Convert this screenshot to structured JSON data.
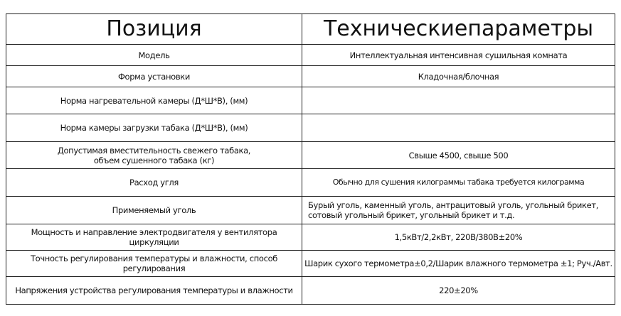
{
  "header": {
    "position": "Позиция",
    "parameters": "Техническиепараметры"
  },
  "rows": [
    {
      "label": "Модель",
      "value": "Интеллектуальная интенсивная сушильная комната"
    },
    {
      "label": "Форма установки",
      "value": "Кладочная/блочная"
    },
    {
      "label": "Норма нагревательной камеры (Д*Ш*В), (мм)",
      "value": ""
    },
    {
      "label": "Норма камеры загрузки табака (Д*Ш*В), (мм)",
      "value": ""
    },
    {
      "label": "Допустимая вместительность свежего табака,\nобъем сушенного табака (кг)",
      "value": "Свыше 4500,  свыше 500"
    },
    {
      "label": "Расход угля",
      "value": "Обычно для сушения килограммы табака требуется килограмма"
    },
    {
      "label": "Применяемый уголь",
      "value": "Бурый уголь, каменный уголь, антрацитовый уголь, угольный брикет, сотовый угольный брикет, угольный брикет и т.д."
    },
    {
      "label": "Мощность и направление электродвигателя у вентилятора циркуляции",
      "value": "1,5кВт/2,2кВт,  220В/380В±20%"
    },
    {
      "label": "Точность регулирования температуры и влажности, способ регулирования",
      "value": "Шарик сухого термометра±0,2/Шарик влажного термометра ±1;  Руч./Авт."
    },
    {
      "label": "Напряжения устройства регулирования температуры и влажности",
      "value": "220±20%"
    }
  ]
}
